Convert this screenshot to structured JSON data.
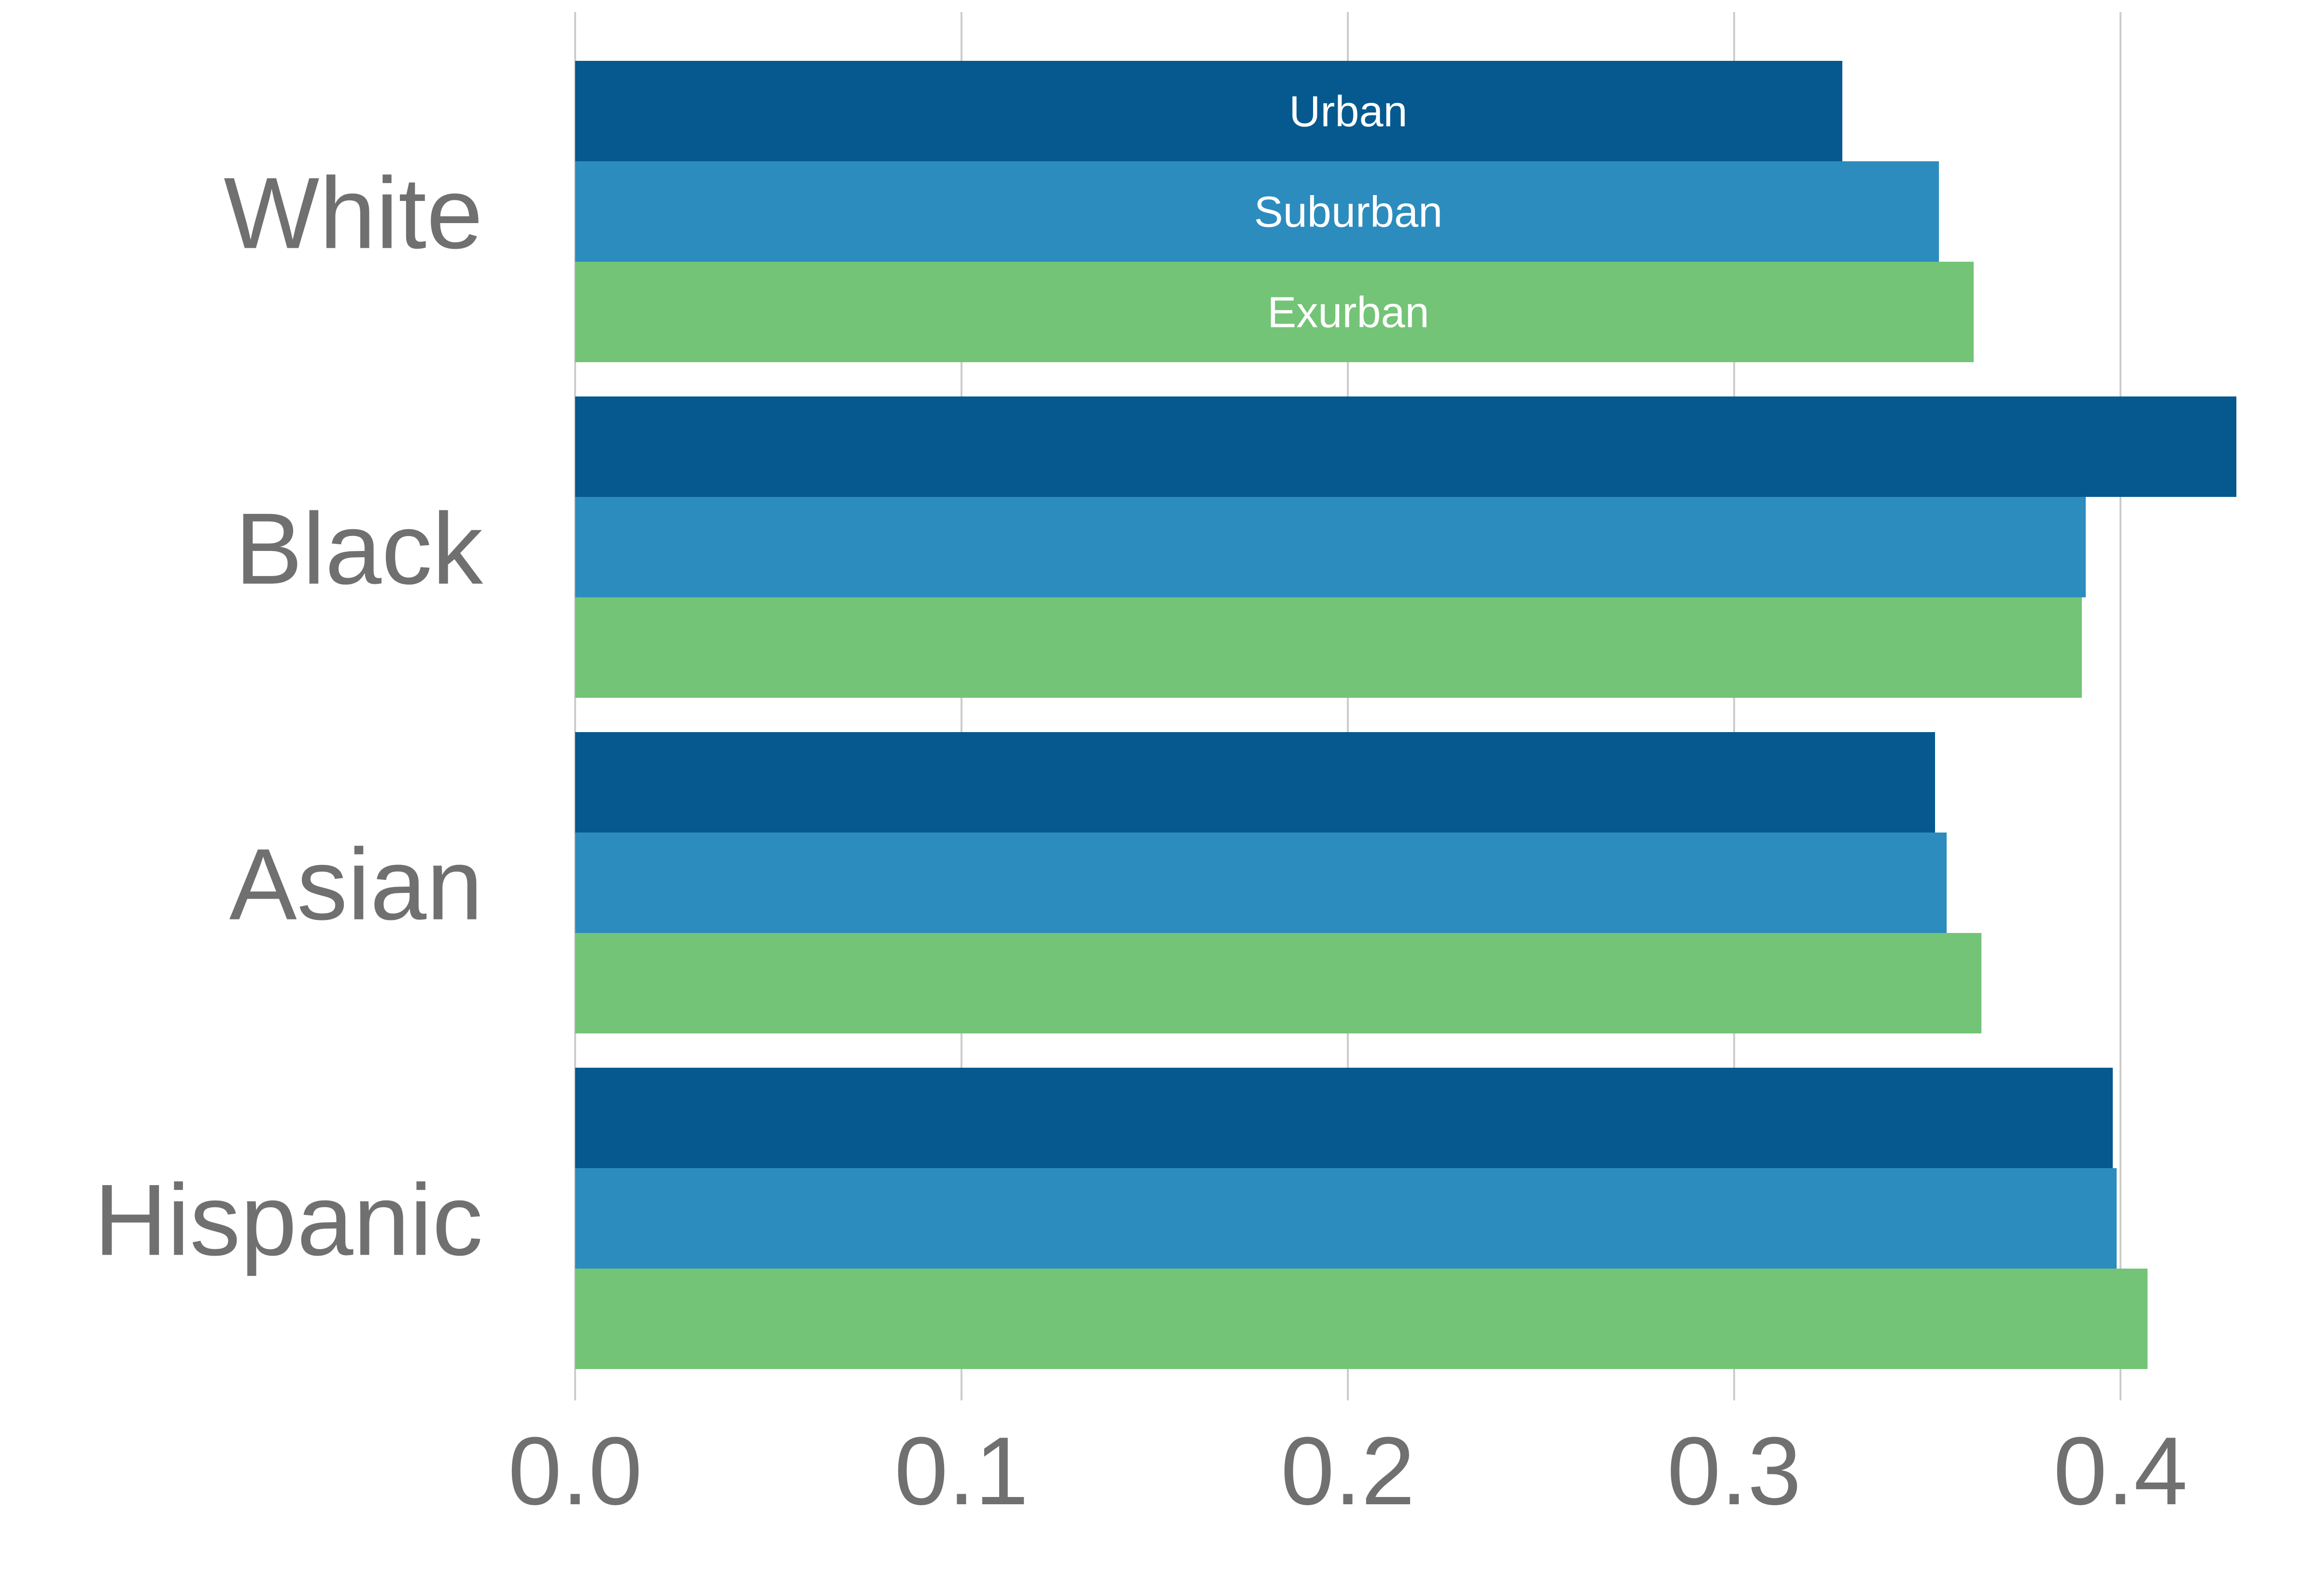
{
  "chart_data": {
    "type": "bar",
    "orientation": "horizontal",
    "categories": [
      "White",
      "Black",
      "Asian",
      "Hispanic"
    ],
    "series": [
      {
        "name": "Urban",
        "color": "#06598f",
        "values": [
          0.328,
          0.43,
          0.352,
          0.398
        ]
      },
      {
        "name": "Suburban",
        "color": "#2c8cbe",
        "values": [
          0.353,
          0.391,
          0.355,
          0.399
        ]
      },
      {
        "name": "Exurban",
        "color": "#73c476",
        "values": [
          0.362,
          0.39,
          0.364,
          0.407
        ]
      }
    ],
    "xticks": [
      "0.0",
      "0.1",
      "0.2",
      "0.3",
      "0.4"
    ],
    "xlim": [
      0,
      0.43
    ],
    "grid": "vertical",
    "legend": "series names printed inside the first group's bars",
    "title": "",
    "xlabel": "",
    "ylabel": ""
  },
  "colors": {
    "axis_text": "#707070",
    "grid": "#cccccc",
    "series_label": "#ffffff"
  }
}
